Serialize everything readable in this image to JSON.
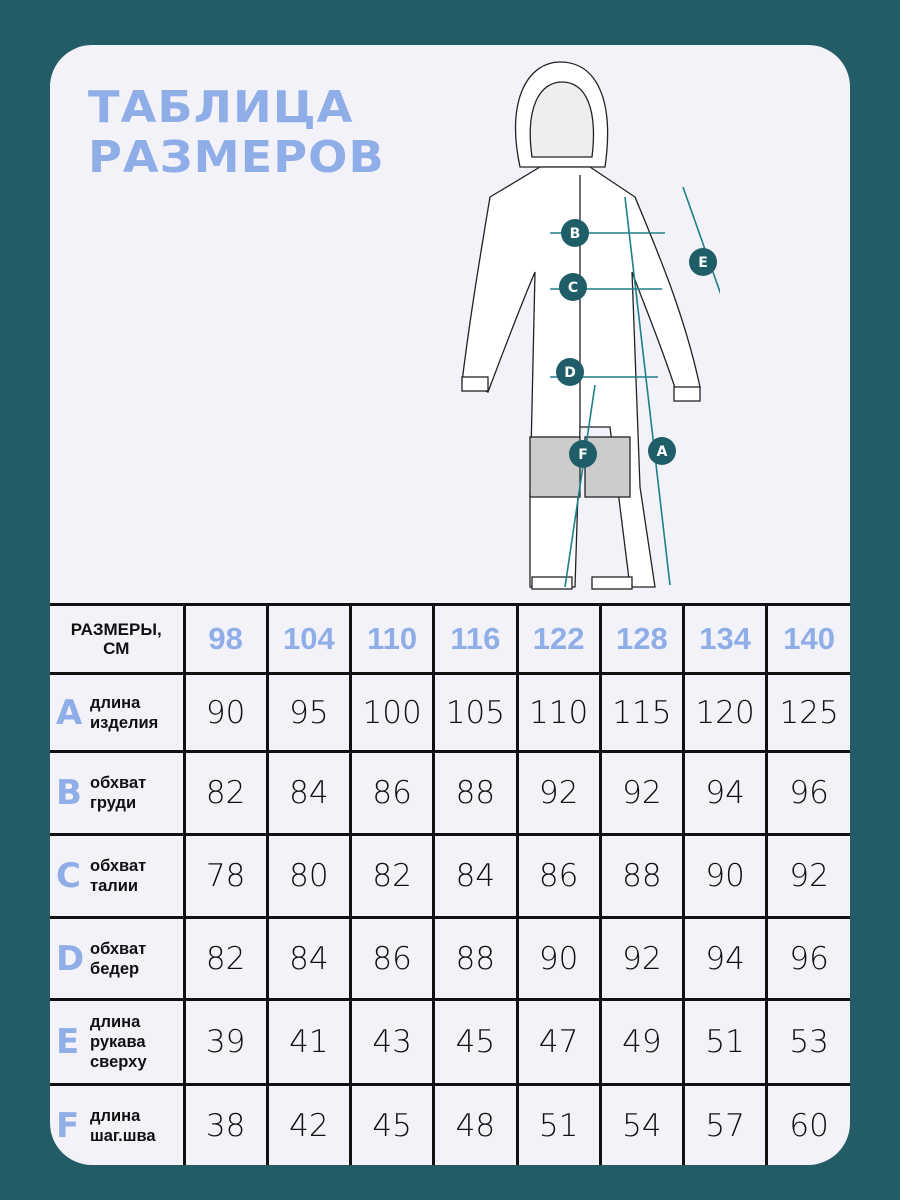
{
  "title": {
    "line1": "ТАБЛИЦА",
    "line2": "РАЗМЕРОВ"
  },
  "colors": {
    "background": "#235c67",
    "card": "#f3f2f9",
    "accent": "#8faee8",
    "marker": "#1f5d68"
  },
  "illustration": {
    "markers": [
      "B",
      "C",
      "D",
      "E",
      "F",
      "A"
    ]
  },
  "table": {
    "header_label": [
      "РАЗМЕРЫ,",
      "СМ"
    ],
    "sizes": [
      "98",
      "104",
      "110",
      "116",
      "122",
      "128",
      "134",
      "140"
    ],
    "rows": [
      {
        "letter": "A",
        "label": [
          "длина",
          "изделия"
        ],
        "values": [
          "90",
          "95",
          "100",
          "105",
          "110",
          "115",
          "120",
          "125"
        ]
      },
      {
        "letter": "B",
        "label": [
          "обхват",
          "груди"
        ],
        "values": [
          "82",
          "84",
          "86",
          "88",
          "92",
          "92",
          "94",
          "96"
        ]
      },
      {
        "letter": "C",
        "label": [
          "обхват",
          "талии"
        ],
        "values": [
          "78",
          "80",
          "82",
          "84",
          "86",
          "88",
          "90",
          "92"
        ]
      },
      {
        "letter": "D",
        "label": [
          "обхват",
          "бедер"
        ],
        "values": [
          "82",
          "84",
          "86",
          "88",
          "90",
          "92",
          "94",
          "96"
        ]
      },
      {
        "letter": "E",
        "label": [
          "длина",
          "рукава",
          "сверху"
        ],
        "values": [
          "39",
          "41",
          "43",
          "45",
          "47",
          "49",
          "51",
          "53"
        ]
      },
      {
        "letter": "F",
        "label": [
          "длина",
          "шаг.шва"
        ],
        "values": [
          "38",
          "42",
          "45",
          "48",
          "51",
          "54",
          "57",
          "60"
        ]
      }
    ]
  }
}
